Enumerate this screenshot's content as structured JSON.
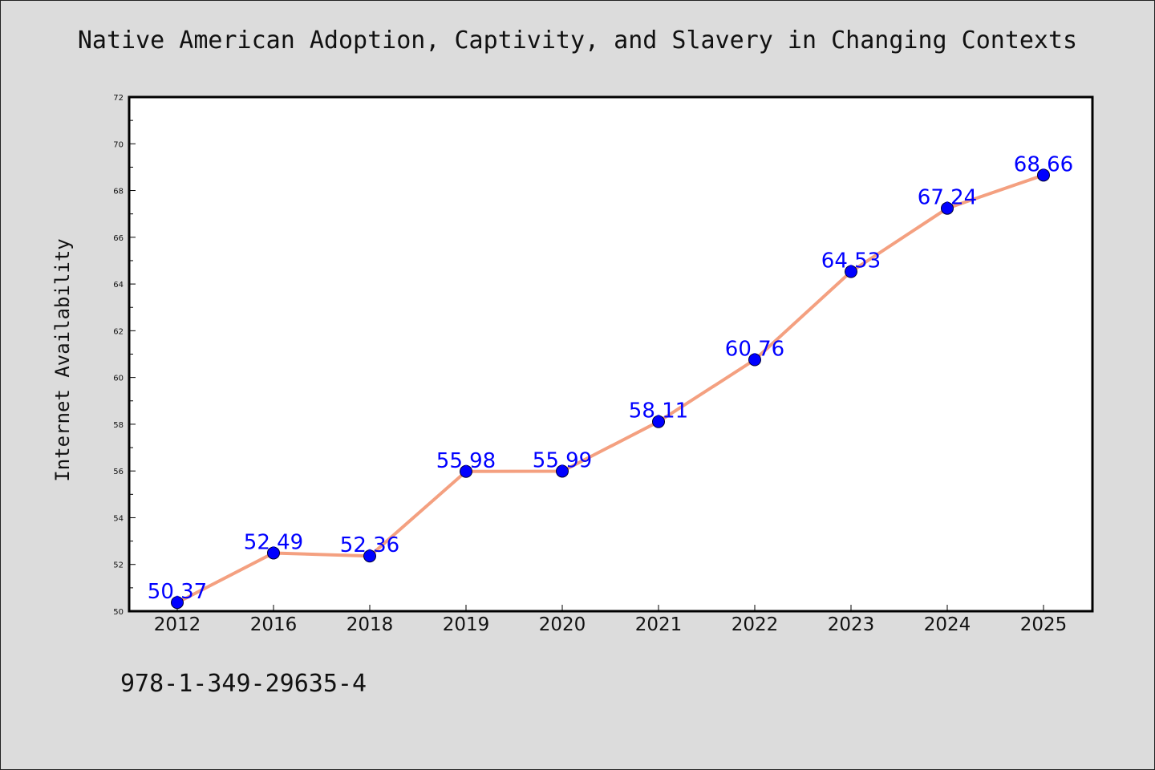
{
  "chart_data": {
    "type": "line",
    "title": "Native American Adoption, Captivity, and Slavery in Changing Contexts",
    "xlabel": "",
    "ylabel": "Internet Availability",
    "categories": [
      "2012",
      "2016",
      "2018",
      "2019",
      "2020",
      "2021",
      "2022",
      "2023",
      "2024",
      "2025"
    ],
    "series": [
      {
        "values": [
          50.37,
          52.49,
          52.36,
          55.98,
          55.99,
          58.11,
          60.76,
          64.53,
          67.24,
          68.66
        ],
        "labels": [
          "50.37",
          "52.49",
          "52.36",
          "55.98",
          "55.99",
          "58.11",
          "60.76",
          "64.53",
          "67.24",
          "68.66"
        ]
      }
    ],
    "ylim": [
      50,
      72
    ],
    "yticks": [
      "50",
      "52",
      "54",
      "56",
      "58",
      "60",
      "62",
      "64",
      "66",
      "68",
      "70",
      "72"
    ],
    "grid": false,
    "line_color": "#f4a080",
    "marker_color": "#0000ff",
    "label_color": "#0000ff"
  },
  "footer": {
    "code": "978-1-349-29635-4"
  }
}
